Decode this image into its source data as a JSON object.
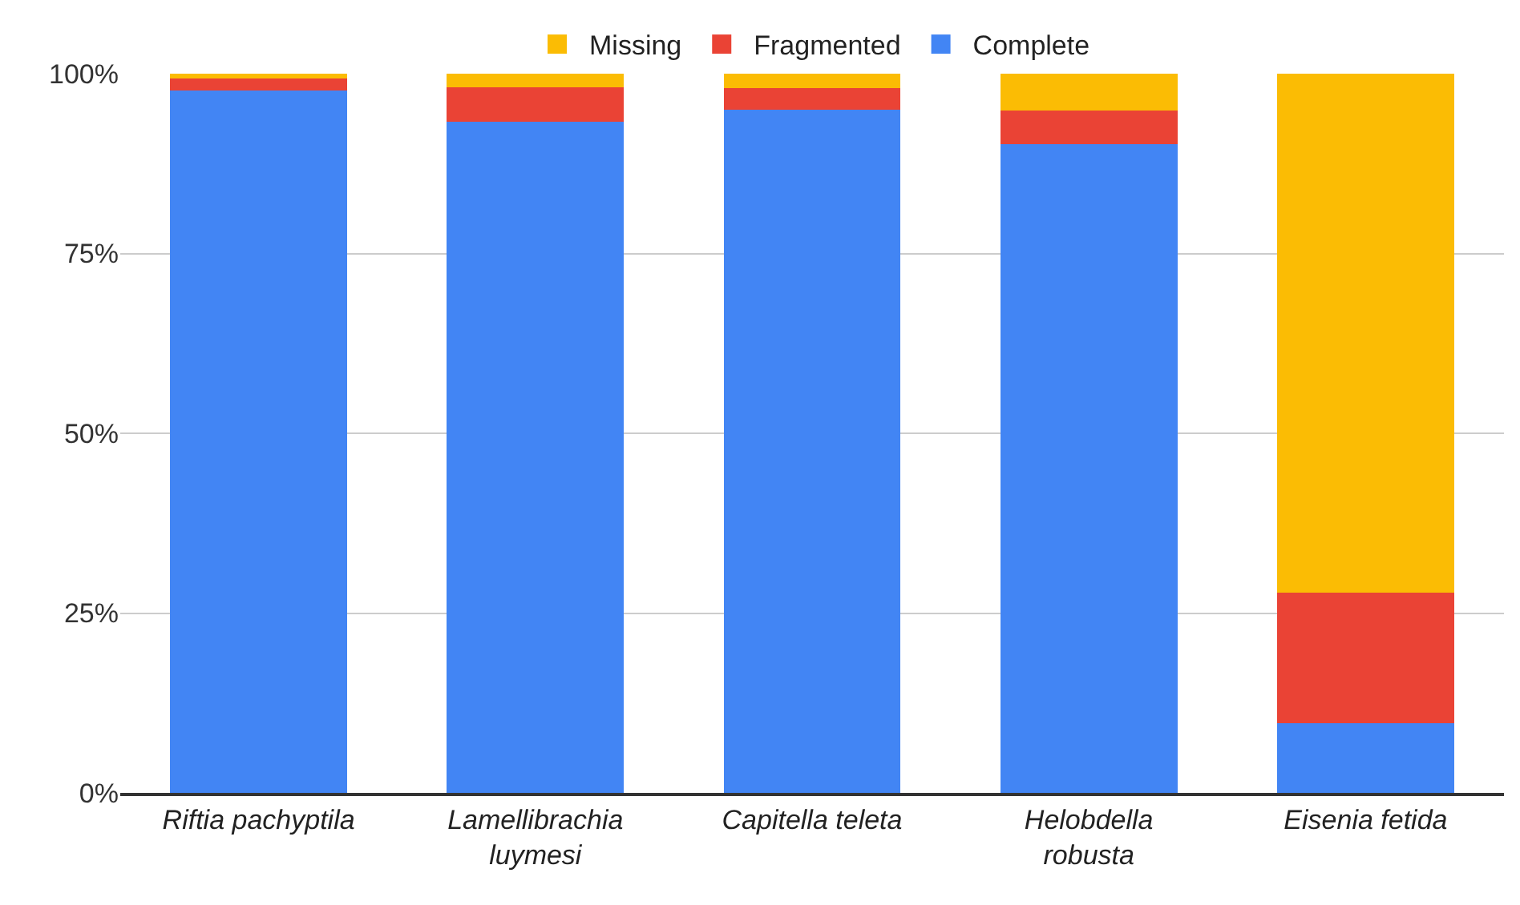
{
  "chart_data": {
    "type": "bar",
    "stacked": true,
    "categories": [
      "Riftia pachyptila",
      "Lamellibrachia luymesi",
      "Capitella teleta",
      "Helobdella robusta",
      "Eisenia fetida"
    ],
    "series": [
      {
        "name": "Complete",
        "color": "#4285f4",
        "values": [
          97.7,
          93.3,
          95.0,
          90.2,
          9.7
        ]
      },
      {
        "name": "Fragmented",
        "color": "#ea4335",
        "values": [
          1.6,
          4.8,
          3.0,
          4.7,
          18.1
        ]
      },
      {
        "name": "Missing",
        "color": "#fbbc04",
        "values": [
          0.7,
          1.9,
          2.0,
          5.1,
          72.2
        ]
      }
    ],
    "ylim": [
      0,
      100
    ],
    "yticks": [
      {
        "value": 0,
        "label": "0%"
      },
      {
        "value": 25,
        "label": "25%"
      },
      {
        "value": 50,
        "label": "50%"
      },
      {
        "value": 75,
        "label": "75%"
      },
      {
        "value": 100,
        "label": "100%"
      }
    ],
    "grid": "y",
    "legend": "top"
  }
}
